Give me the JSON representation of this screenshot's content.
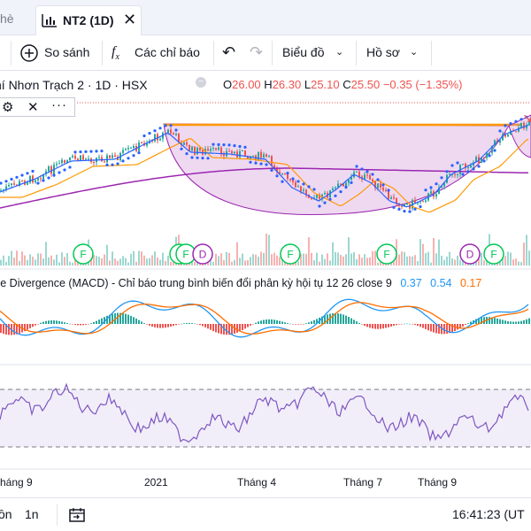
{
  "tabs": {
    "prev_label": "hè",
    "active_label": "NT2 (1D)"
  },
  "toolbar": {
    "compare": "So sánh",
    "indicators": "Các chỉ báo",
    "chart_type": "Biểu đồ",
    "profile": "Hồ sơ"
  },
  "legend": {
    "symbol": "hí Nhơn Trạch 2 · 1D · HSX",
    "o_label": "O",
    "o": "26.00",
    "h_label": "H",
    "h": "26.30",
    "l_label": "L",
    "l": "25.10",
    "c_label": "C",
    "c": "25.50",
    "change": "−0.35 (−1.35%)"
  },
  "macd": {
    "label": "ce Divergence (MACD) - Chỉ báo trung bình biến đổi phân kỳ hội tụ 12 26 close 9",
    "v1": "0.37",
    "v2": "0.54",
    "v3": "0.17"
  },
  "events": [
    {
      "label": "F"
    },
    {
      "label": "F"
    },
    {
      "label": "F"
    },
    {
      "label": "D"
    },
    {
      "label": "F"
    },
    {
      "label": "F"
    },
    {
      "label": "D"
    },
    {
      "label": "F"
    }
  ],
  "time_axis": [
    "háng 9",
    "2021",
    "Tháng 4",
    "Tháng 7",
    "Tháng 9"
  ],
  "bottombar": {
    "range1": "ồn",
    "range2": "1n",
    "clock": "16:41:23 (UT"
  },
  "colors": {
    "up": "#26a69a",
    "down": "#ef5350",
    "blue": "#2962ff",
    "orange": "#ff9800",
    "purple": "#9c27b0",
    "rsi": "#7e57c2"
  }
}
